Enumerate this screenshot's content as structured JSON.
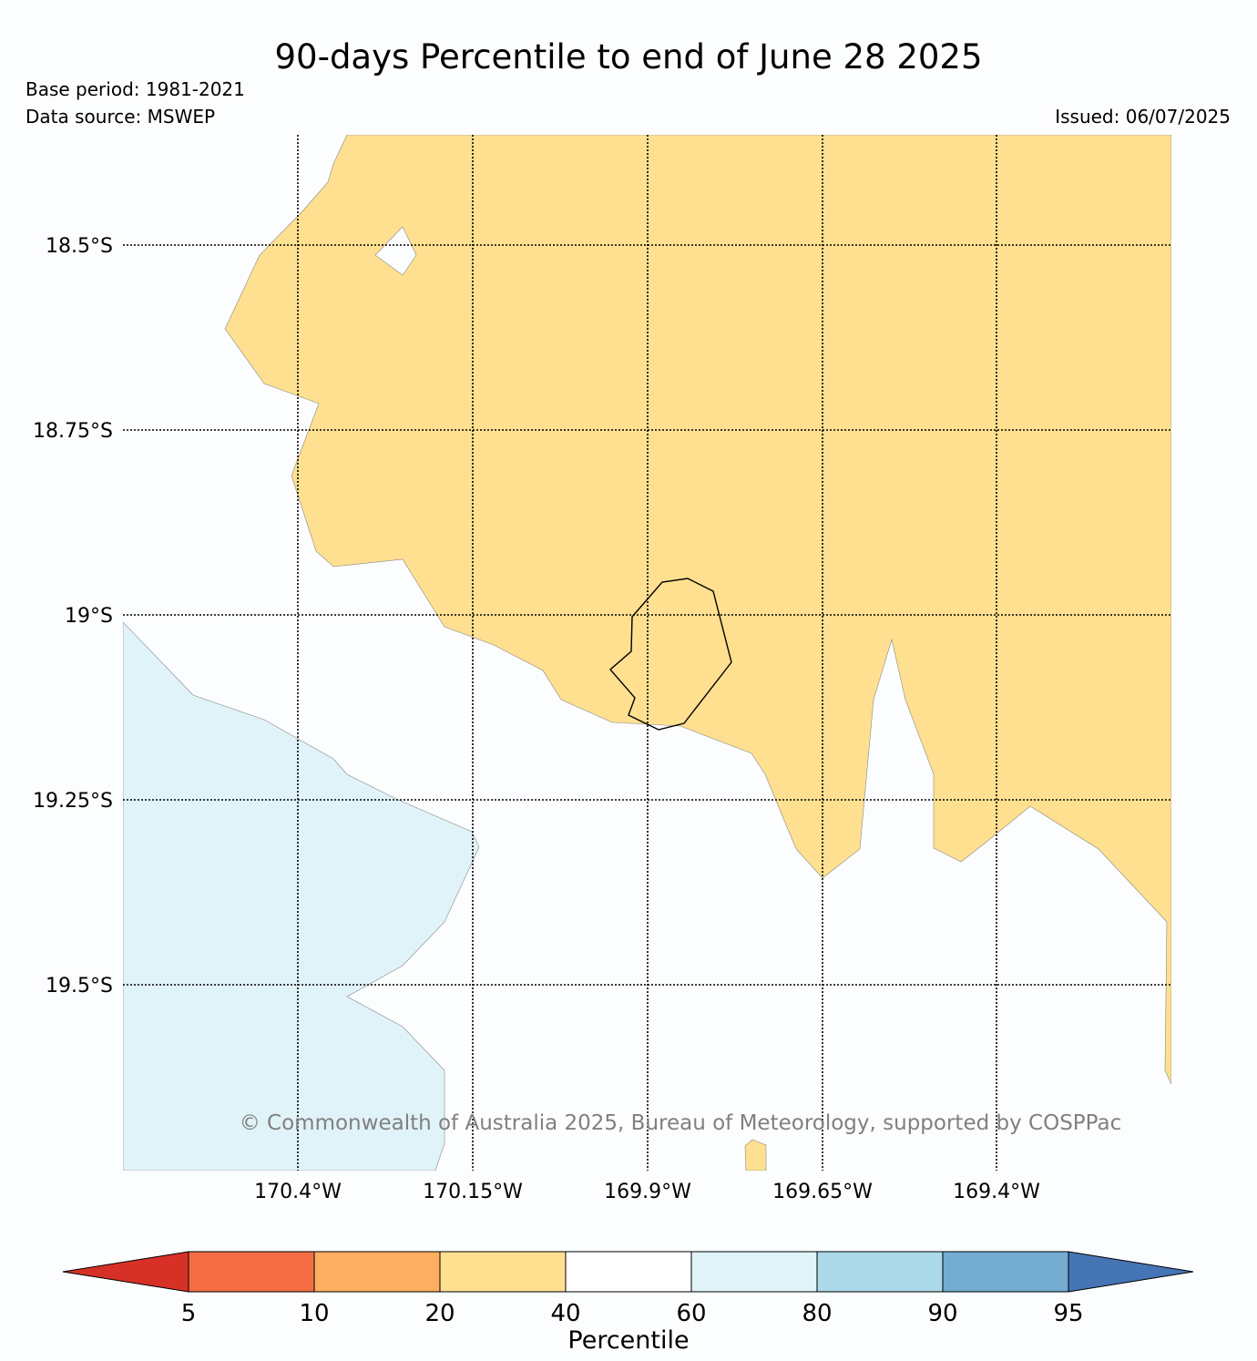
{
  "title": "90-days Percentile to end of June 28 2025",
  "base_period": "Base period: 1981-2021",
  "data_source": "Data source: MSWEP",
  "issued": "Issued: 06/07/2025",
  "copyright": "© Commonwealth of Australia 2025, Bureau of Meteorology, supported by COSPPac",
  "lat_labels": [
    "18.5°S",
    "18.75°S",
    "19°S",
    "19.25°S",
    "19.5°S"
  ],
  "lon_labels": [
    "170.4°W",
    "170.15°W",
    "169.9°W",
    "169.65°W",
    "169.4°W"
  ],
  "colorbar": {
    "label": "Percentile",
    "ticks": [
      "5",
      "10",
      "20",
      "40",
      "60",
      "80",
      "90",
      "95"
    ],
    "colors": [
      "#d73027",
      "#f46d43",
      "#fdae61",
      "#fee090",
      "#ffffff",
      "#e0f3f8",
      "#abd9e9",
      "#74add1",
      "#4575b4"
    ]
  },
  "map_legend_categories": {
    "land_fill": "#fee090",
    "ocean_light_blue": "#e0f3f8"
  }
}
